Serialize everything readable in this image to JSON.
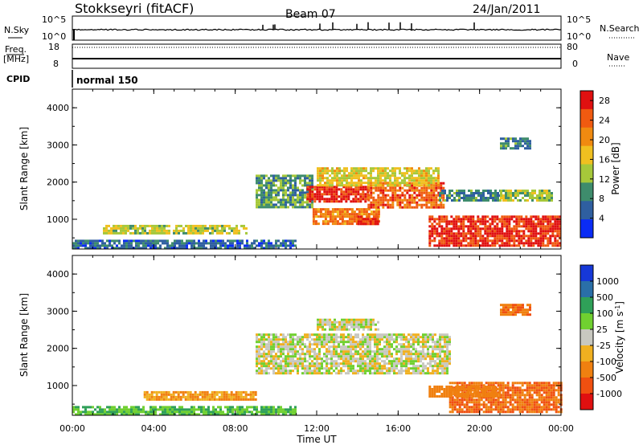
{
  "header": {
    "title_left": "Stokkseyri (fitACF)",
    "title_center": "Beam 07",
    "title_right": "24/Jan/2011"
  },
  "status": {
    "nsky_label": "N.Sky",
    "nsky_top_tick": "10^5",
    "nsky_bottom_tick": "10^0",
    "nsearch_label": "N.Search",
    "nsearch_top_tick": "10^5",
    "nsearch_bottom_tick": "10^0",
    "freq_label": "Freq.",
    "freq_unit": "[MHz]",
    "freq_top_tick": "18",
    "freq_bottom_tick": "8",
    "nave_label": "Nave",
    "nave_top_tick": "80",
    "nave_bottom_tick": "0",
    "cpid_label": "CPID",
    "cpid_value": "normal 150"
  },
  "chart_data": [
    {
      "type": "heatmap",
      "name": "power",
      "ylabel": "Slant Range [km]",
      "xlabel": "Time UT",
      "xlim": [
        0,
        24
      ],
      "ylim": [
        200,
        4500
      ],
      "x_ticks": [
        "00:00",
        "04:00",
        "08:00",
        "12:00",
        "16:00",
        "20:00",
        "00:00"
      ],
      "y_ticks": [
        "1000",
        "2000",
        "3000",
        "4000"
      ],
      "colorbar": {
        "label": "Power [dB]",
        "ticks": [
          "4",
          "8",
          "12",
          "16",
          "20",
          "24",
          "28"
        ],
        "range": [
          0,
          30
        ],
        "colors": [
          "#0a2cf5",
          "#2f5fa0",
          "#3e8c6c",
          "#a6c83a",
          "#f0c020",
          "#f08a10",
          "#f05a10",
          "#e01010"
        ]
      },
      "regions": [
        {
          "t": [
            1.5,
            8.5
          ],
          "r": [
            600,
            850
          ],
          "p": 14
        },
        {
          "t": [
            9.0,
            11.8
          ],
          "r": [
            1300,
            2200
          ],
          "p": 10
        },
        {
          "t": [
            11.5,
            14.5
          ],
          "r": [
            1500,
            1900
          ],
          "p": 27
        },
        {
          "t": [
            11.8,
            15.0
          ],
          "r": [
            850,
            1300
          ],
          "p": 22
        },
        {
          "t": [
            14.5,
            18.2
          ],
          "r": [
            1300,
            2000
          ],
          "p": 24
        },
        {
          "t": [
            12.0,
            18.0
          ],
          "r": [
            1900,
            2400
          ],
          "p": 16
        },
        {
          "t": [
            14.0,
            15.0
          ],
          "r": [
            850,
            1100
          ],
          "p": 27
        },
        {
          "t": [
            17.5,
            24.0
          ],
          "r": [
            300,
            1100
          ],
          "p": 27
        },
        {
          "t": [
            18.0,
            21.0
          ],
          "r": [
            1500,
            1800
          ],
          "p": 8
        },
        {
          "t": [
            21.0,
            23.5
          ],
          "r": [
            1500,
            1800
          ],
          "p": 13
        },
        {
          "t": [
            21.0,
            22.5
          ],
          "r": [
            2900,
            3200
          ],
          "p": 8
        },
        {
          "t": [
            0.0,
            11.0
          ],
          "r": [
            200,
            450
          ],
          "p": 6
        }
      ]
    },
    {
      "type": "heatmap",
      "name": "velocity",
      "ylabel": "Slant Range [km]",
      "xlabel": "Time UT",
      "xlim": [
        0,
        24
      ],
      "ylim": [
        200,
        4500
      ],
      "x_ticks": [
        "00:00",
        "04:00",
        "08:00",
        "12:00",
        "16:00",
        "20:00",
        "00:00"
      ],
      "y_ticks": [
        "1000",
        "2000",
        "3000",
        "4000"
      ],
      "colorbar": {
        "label": "Velocity [m s^-1]",
        "ticks": [
          "1000",
          "500",
          "100",
          "25",
          "-25",
          "-100",
          "-500",
          "-1000"
        ],
        "colors": [
          "#1638d8",
          "#2a6fa8",
          "#2fa058",
          "#70d030",
          "#c8c8c0",
          "#f0b020",
          "#f08010",
          "#f05010",
          "#e01010"
        ]
      },
      "regions": [
        {
          "t": [
            3.5,
            9.0
          ],
          "r": [
            600,
            850
          ],
          "v": -100
        },
        {
          "t": [
            9.0,
            18.5
          ],
          "r": [
            1300,
            2400
          ],
          "v": 0
        },
        {
          "t": [
            12.0,
            15.0
          ],
          "r": [
            2500,
            2800
          ],
          "v": 0
        },
        {
          "t": [
            18.5,
            24.0
          ],
          "r": [
            300,
            1100
          ],
          "v": -500
        },
        {
          "t": [
            17.5,
            21.0
          ],
          "r": [
            700,
            1000
          ],
          "v": -250
        },
        {
          "t": [
            21.0,
            22.5
          ],
          "r": [
            2900,
            3200
          ],
          "v": -500
        },
        {
          "t": [
            0.0,
            11.0
          ],
          "r": [
            200,
            450
          ],
          "v": 100
        }
      ]
    }
  ]
}
